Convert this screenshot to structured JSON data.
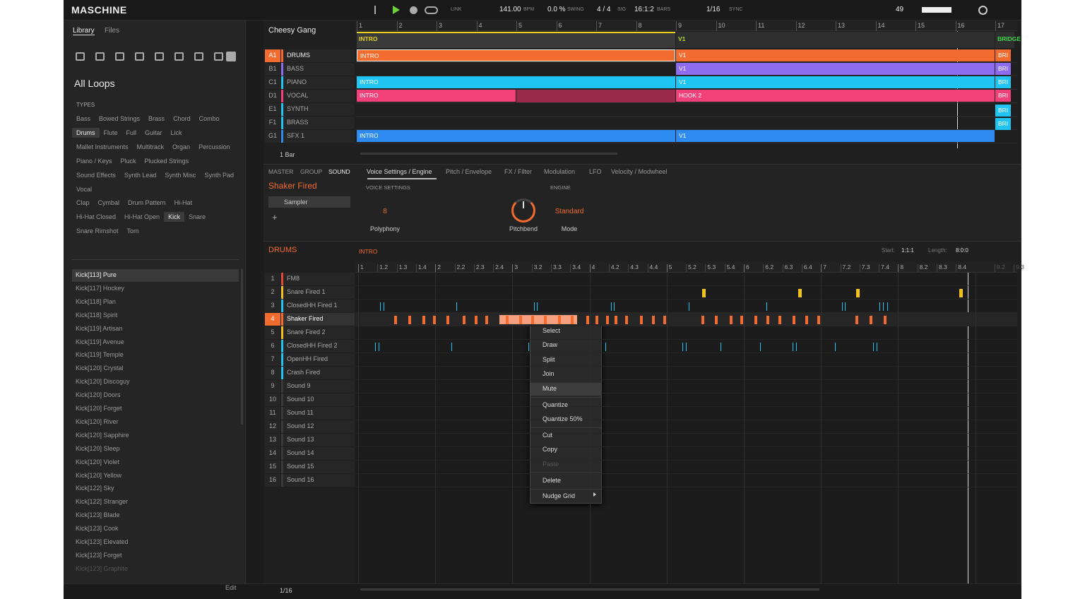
{
  "header": {
    "logo": "MASCHINE",
    "link": "LINK",
    "bpm": "141.00",
    "bpm_label": "BPM",
    "swing": "0.0 %",
    "swing_label": "SWING",
    "signature": "4 / 4",
    "signature_label": "SIG",
    "position": "16:1:2",
    "position_label": "BARS",
    "grid": "1/16",
    "sync": "SYNC",
    "cpu": "49"
  },
  "browser": {
    "tabs": [
      "Library",
      "Files"
    ],
    "title": "All Loops",
    "types_label": "TYPES",
    "types": [
      {
        "label": "Bass"
      },
      {
        "label": "Bowed Strings"
      },
      {
        "label": "Brass"
      },
      {
        "label": "Chord"
      },
      {
        "label": "Combo"
      },
      {
        "label": "Drums",
        "selected": true
      },
      {
        "label": "Flute"
      },
      {
        "label": "Full"
      },
      {
        "label": "Guitar"
      },
      {
        "label": "Lick"
      },
      {
        "label": "Mallet Instruments"
      },
      {
        "label": "Multitrack"
      },
      {
        "label": "Organ"
      },
      {
        "label": "Percussion"
      },
      {
        "label": "Piano / Keys"
      },
      {
        "label": "Pluck"
      },
      {
        "label": "Plucked Strings"
      },
      {
        "label": "Sound Effects"
      },
      {
        "label": "Synth Lead"
      },
      {
        "label": "Synth Misc"
      },
      {
        "label": "Synth Pad"
      },
      {
        "label": "Vocal"
      }
    ],
    "subtypes": [
      {
        "label": "Clap"
      },
      {
        "label": "Cymbal"
      },
      {
        "label": "Drum Pattern"
      },
      {
        "label": "Hi-Hat"
      },
      {
        "label": "Hi-Hat Closed"
      },
      {
        "label": "Hi-Hat Open"
      },
      {
        "label": "Kick",
        "selected": true
      },
      {
        "label": "Snare"
      },
      {
        "label": "Snare Rimshot"
      },
      {
        "label": "Tom"
      }
    ],
    "results": [
      {
        "label": "Kick[113] Pure",
        "selected": true
      },
      {
        "label": "Kick[117] Hockey"
      },
      {
        "label": "Kick[118] Plan"
      },
      {
        "label": "Kick[118] Spirit"
      },
      {
        "label": "Kick[119] Artisan"
      },
      {
        "label": "Kick[119] Avenue"
      },
      {
        "label": "Kick[119] Temple"
      },
      {
        "label": "Kick[120] Crystal"
      },
      {
        "label": "Kick[120] Discoguy"
      },
      {
        "label": "Kick[120] Doors"
      },
      {
        "label": "Kick[120] Forget"
      },
      {
        "label": "Kick[120] River"
      },
      {
        "label": "Kick[120] Sapphire"
      },
      {
        "label": "Kick[120] Sleep"
      },
      {
        "label": "Kick[120] Violet"
      },
      {
        "label": "Kick[120] Yellow"
      },
      {
        "label": "Kick[122] Sky"
      },
      {
        "label": "Kick[122] Stranger"
      },
      {
        "label": "Kick[123] Blade"
      },
      {
        "label": "Kick[123] Cook"
      },
      {
        "label": "Kick[123] Elevated"
      },
      {
        "label": "Kick[123] Forget"
      },
      {
        "label": "Kick[123] Graphite"
      }
    ],
    "edit": "Edit"
  },
  "arranger": {
    "project": "Cheesy Gang",
    "bars": [
      "1",
      "2",
      "3",
      "4",
      "5",
      "6",
      "7",
      "8",
      "9",
      "10",
      "11",
      "12",
      "13",
      "14",
      "15",
      "16",
      "17"
    ],
    "sections": [
      {
        "label": "INTRO",
        "color": "#e8d21c"
      },
      {
        "label": "V1",
        "color": "#b8e02a"
      },
      {
        "label": "BRIDGE",
        "color": "#3fd64a"
      }
    ],
    "tracks": [
      {
        "id": "A1",
        "name": "DRUMS",
        "color": "#f26b2f",
        "selected": true,
        "clips": [
          "INTRO",
          "V1",
          "BRI"
        ]
      },
      {
        "id": "B1",
        "name": "BASS",
        "color": "#8e6cf0",
        "clips": [
          "V1",
          "BRI"
        ]
      },
      {
        "id": "C1",
        "name": "PIANO",
        "color": "#1fc4f2",
        "clips": [
          "INTRO",
          "V1",
          "BRI"
        ]
      },
      {
        "id": "D1",
        "name": "VOCAL",
        "color": "#f2407a",
        "clips": [
          "INTRO",
          "HOOK 2",
          "BRI"
        ]
      },
      {
        "id": "E1",
        "name": "SYNTH",
        "color": "#1fc4f2",
        "clips": [
          "BRI"
        ]
      },
      {
        "id": "F1",
        "name": "BRASS",
        "color": "#1fc4f2",
        "clips": [
          "BRI"
        ]
      },
      {
        "id": "G1",
        "name": "SFX 1",
        "color": "#2e8cf0",
        "clips": [
          "INTRO",
          "V1"
        ]
      }
    ],
    "length": "1 Bar"
  },
  "sound_panel": {
    "tabs": [
      "MASTER",
      "GROUP",
      "SOUND"
    ],
    "sound": "Shaker Fired",
    "plugin": "Sampler",
    "param_tabs": [
      "Voice Settings / Engine",
      "Pitch / Envelope",
      "FX / Filter",
      "Modulation",
      "LFO",
      "Velocity / Modwheel"
    ],
    "voice_settings": "VOICE SETTINGS",
    "engine": "ENGINE",
    "polyphony": {
      "value": "8",
      "label": "Polyphony"
    },
    "pitchbend": {
      "label": "Pitchbend"
    },
    "mode": {
      "value": "Standard",
      "label": "Mode"
    }
  },
  "pattern": {
    "group": "DRUMS",
    "name": "INTRO",
    "start_label": "Start:",
    "start": "1:1:1",
    "length_label": "Length:",
    "length": "8:0:0",
    "ruler": [
      "1",
      "1.2",
      "1.3",
      "1.4",
      "2",
      "2.2",
      "2.3",
      "2.4",
      "3",
      "3.2",
      "3.3",
      "3.4",
      "4",
      "4.2",
      "4.3",
      "4.4",
      "5",
      "5.2",
      "5.3",
      "5.4",
      "6",
      "6.2",
      "6.3",
      "6.4",
      "7",
      "7.2",
      "7.3",
      "7.4",
      "8",
      "8.2",
      "8.3",
      "8.4",
      "9.2",
      "9.3"
    ],
    "sounds": [
      {
        "name": "FM8",
        "color": "#e5483a"
      },
      {
        "name": "Snare Fired 1",
        "color": "#f2c218"
      },
      {
        "name": "ClosedHH Fired 1",
        "color": "#1fc4f2"
      },
      {
        "name": "Shaker Fired",
        "color": "#f26b2f",
        "selected": true
      },
      {
        "name": "Snare Fired 2",
        "color": "#f2c218"
      },
      {
        "name": "ClosedHH Fired 2",
        "color": "#1fc4f2"
      },
      {
        "name": "OpenHH Fired",
        "color": "#1fc4f2"
      },
      {
        "name": "Crash Fired",
        "color": "#1fc4f2"
      },
      {
        "name": "Sound 9"
      },
      {
        "name": "Sound 10"
      },
      {
        "name": "Sound 11"
      },
      {
        "name": "Sound 12"
      },
      {
        "name": "Sound 13"
      },
      {
        "name": "Sound 14"
      },
      {
        "name": "Sound 15"
      },
      {
        "name": "Sound 16"
      }
    ],
    "grid": "1/16"
  },
  "context_menu": [
    {
      "label": "Select"
    },
    {
      "label": "Draw"
    },
    {
      "label": "Split"
    },
    {
      "label": "Join"
    },
    {
      "label": "Mute",
      "highlighted": true
    },
    {
      "label": "Quantize"
    },
    {
      "label": "Quantize 50%"
    },
    {
      "label": "Cut"
    },
    {
      "label": "Copy"
    },
    {
      "label": "Paste",
      "disabled": true
    },
    {
      "label": "Delete"
    },
    {
      "label": "Nudge Grid"
    }
  ]
}
